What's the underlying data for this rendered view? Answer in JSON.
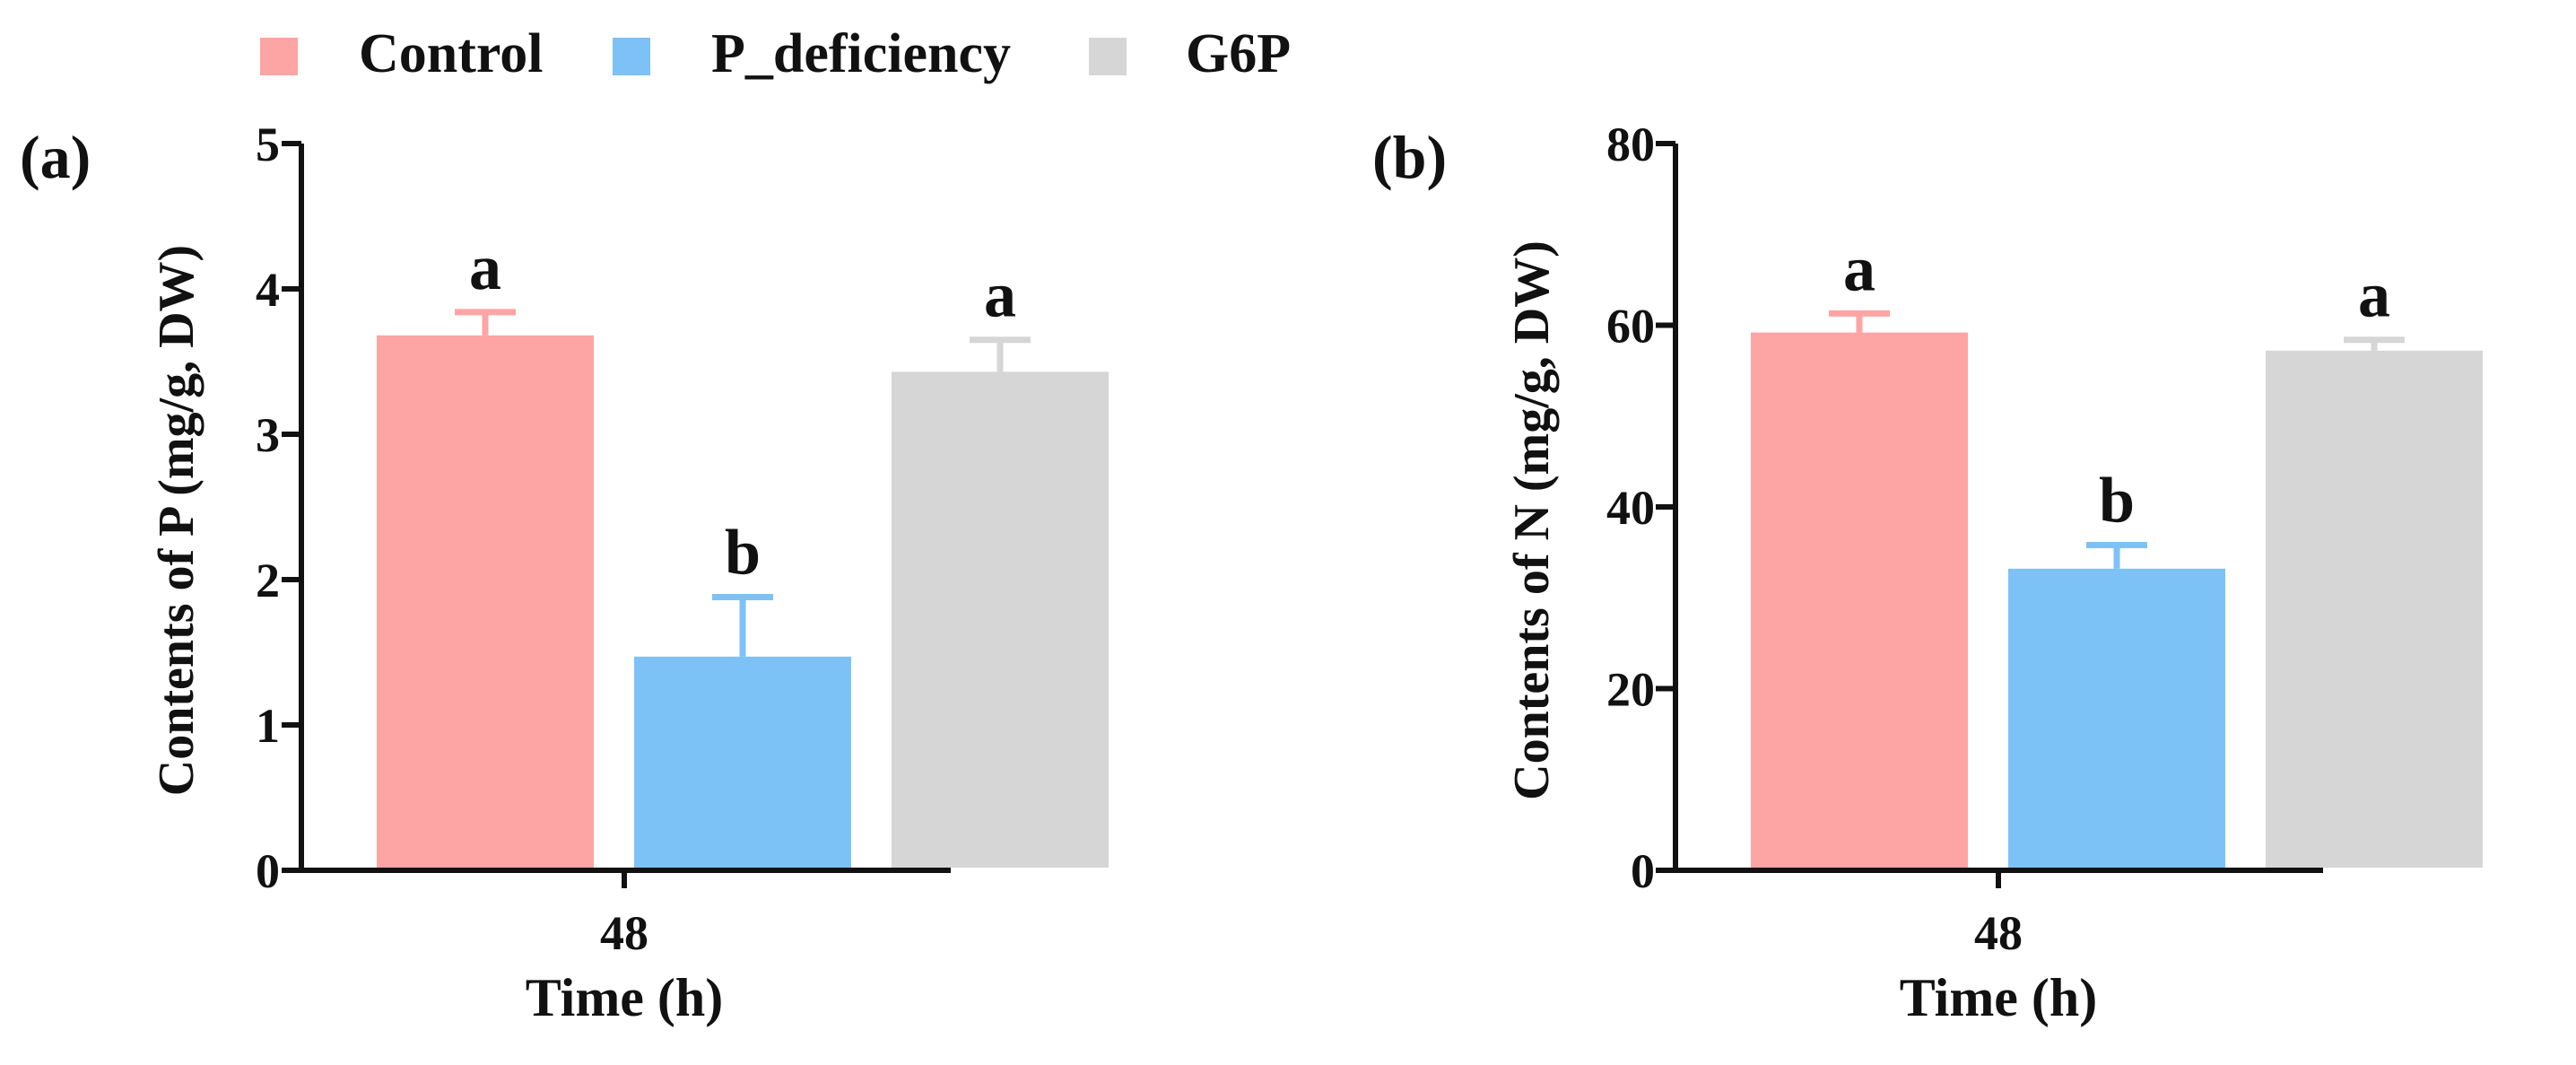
{
  "legend": {
    "items": [
      {
        "label": "Control",
        "color": "#fda4a4"
      },
      {
        "label": "P_deficiency",
        "color": "#7cc2f7"
      },
      {
        "label": "G6P",
        "color": "#d6d6d6"
      }
    ]
  },
  "chart_data": [
    {
      "type": "bar",
      "panel_label": "(a)",
      "categories": [
        "48"
      ],
      "series": [
        {
          "name": "Control",
          "values": [
            3.68
          ],
          "error": [
            0.16
          ],
          "significance": "a"
        },
        {
          "name": "P_deficiency",
          "values": [
            1.47
          ],
          "error": [
            0.41
          ],
          "significance": "b"
        },
        {
          "name": "G6P",
          "values": [
            3.43
          ],
          "error": [
            0.22
          ],
          "significance": "a"
        }
      ],
      "xlabel": "Time (h)",
      "ylabel": "Contents of P (mg/g, DW)",
      "ylim": [
        0,
        5
      ],
      "yticks": [
        "0",
        "1",
        "2",
        "3",
        "4",
        "5"
      ],
      "ytick_values": [
        0,
        1,
        2,
        3,
        4,
        5
      ]
    },
    {
      "type": "bar",
      "panel_label": "(b)",
      "categories": [
        "48"
      ],
      "series": [
        {
          "name": "Control",
          "values": [
            59.2
          ],
          "error": [
            2.1
          ],
          "significance": "a"
        },
        {
          "name": "P_deficiency",
          "values": [
            33.2
          ],
          "error": [
            2.6
          ],
          "significance": "b"
        },
        {
          "name": "G6P",
          "values": [
            57.2
          ],
          "error": [
            1.2
          ],
          "significance": "a"
        }
      ],
      "xlabel": "Time (h)",
      "ylabel": "Contents of N (mg/g, DW)",
      "ylim": [
        0,
        80
      ],
      "yticks": [
        "0",
        "20",
        "40",
        "60",
        "80"
      ],
      "ytick_values": [
        0,
        20,
        40,
        60,
        80
      ]
    }
  ]
}
